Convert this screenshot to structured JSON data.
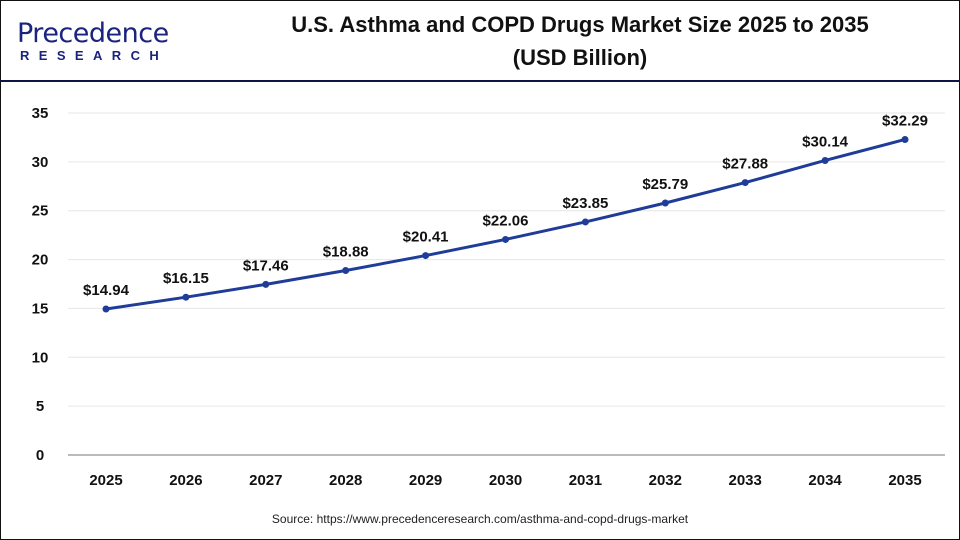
{
  "logo": {
    "line1": "Precedence",
    "line2": "RESEARCH"
  },
  "chart_data": {
    "type": "line",
    "title": "U.S. Asthma and COPD Drugs Market Size 2025 to 2035 (USD Billion)",
    "title_line1": "U.S. Asthma and COPD Drugs Market Size 2025 to 2035",
    "title_line2": "(USD Billion)",
    "categories": [
      "2025",
      "2026",
      "2027",
      "2028",
      "2029",
      "2030",
      "2031",
      "2032",
      "2033",
      "2034",
      "2035"
    ],
    "values": [
      14.94,
      16.15,
      17.46,
      18.88,
      20.41,
      22.06,
      23.85,
      25.79,
      27.88,
      30.14,
      32.29
    ],
    "data_labels": [
      "$14.94",
      "$16.15",
      "$17.46",
      "$18.88",
      "$20.41",
      "$22.06",
      "$23.85",
      "$25.79",
      "$27.88",
      "$30.14",
      "$32.29"
    ],
    "yticks": [
      "0",
      "5",
      "10",
      "15",
      "20",
      "25",
      "30",
      "35"
    ],
    "ylim": [
      0,
      35
    ],
    "grid": true,
    "line_color": "#1f3c99",
    "xlabel": "",
    "ylabel": ""
  },
  "source": "Source: https://www.precedenceresearch.com/asthma-and-copd-drugs-market"
}
